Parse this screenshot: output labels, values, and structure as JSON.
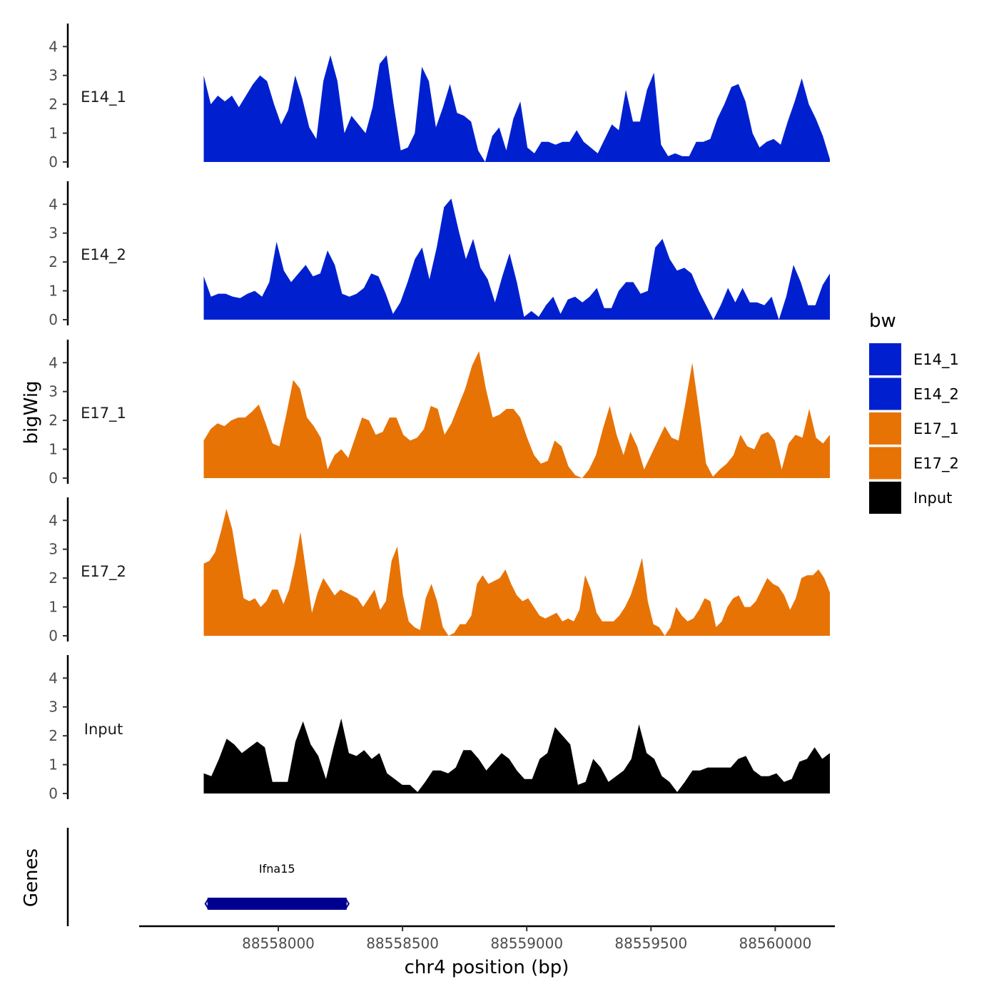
{
  "chart_data": {
    "type": "area",
    "chromosome": "chr4",
    "xlabel": "chr4 position (bp)",
    "ylabel": "bigWig",
    "genes_panel_label": "Genes",
    "xlim": [
      88557440,
      88560240
    ],
    "region": [
      88557700,
      88560220
    ],
    "xticks": [
      88558000,
      88558500,
      88559000,
      88559500,
      88560000
    ],
    "xtick_labels": [
      "88558000",
      "88558500",
      "88559000",
      "88559500",
      "88560000"
    ],
    "ylim": [
      0,
      4.6
    ],
    "yticks": [
      0,
      1,
      2,
      3,
      4
    ],
    "ytick_labels": [
      "0",
      "1",
      "2",
      "3",
      "4"
    ],
    "legend": {
      "title": "bw",
      "position": "right",
      "entries": [
        {
          "label": "E14_1",
          "color": "#0020D0"
        },
        {
          "label": "E14_2",
          "color": "#0020D0"
        },
        {
          "label": "E17_1",
          "color": "#E87305"
        },
        {
          "label": "E17_2",
          "color": "#E87305"
        },
        {
          "label": "Input",
          "color": "#000000"
        }
      ]
    },
    "series": [
      {
        "name": "E14_1",
        "color": "#0020D0",
        "values": [
          3.0,
          2.0,
          2.3,
          2.1,
          2.3,
          1.9,
          2.3,
          2.7,
          3.0,
          2.8,
          2.0,
          1.3,
          1.8,
          3.0,
          2.2,
          1.2,
          0.8,
          2.8,
          3.7,
          2.8,
          1.0,
          1.6,
          1.3,
          1.0,
          1.9,
          3.4,
          3.7,
          2.0,
          0.4,
          0.5,
          1.0,
          3.3,
          2.8,
          1.2,
          1.9,
          2.7,
          1.7,
          1.6,
          1.4,
          0.4,
          0.0,
          0.9,
          1.2,
          0.4,
          1.5,
          2.1,
          0.5,
          0.3,
          0.7,
          0.7,
          0.6,
          0.7,
          0.7,
          1.1,
          0.7,
          0.5,
          0.3,
          0.8,
          1.3,
          1.1,
          2.5,
          1.4,
          1.4,
          2.5,
          3.1,
          0.6,
          0.2,
          0.3,
          0.2,
          0.2,
          0.7,
          0.7,
          0.8,
          1.5,
          2.0,
          2.6,
          2.7,
          2.1,
          1.0,
          0.5,
          0.7,
          0.8,
          0.6,
          1.4,
          2.1,
          2.9,
          2.0,
          1.5,
          0.9,
          0.1
        ]
      },
      {
        "name": "E14_2",
        "color": "#0020D0",
        "values": [
          1.5,
          0.8,
          0.9,
          0.9,
          0.8,
          0.75,
          0.9,
          1.0,
          0.8,
          1.3,
          2.7,
          1.7,
          1.3,
          1.6,
          1.9,
          1.5,
          1.6,
          2.4,
          1.9,
          0.9,
          0.8,
          0.9,
          1.1,
          1.6,
          1.5,
          0.9,
          0.2,
          0.6,
          1.3,
          2.1,
          2.5,
          1.4,
          2.5,
          3.9,
          4.2,
          3.1,
          2.1,
          2.8,
          1.8,
          1.4,
          0.6,
          1.5,
          2.3,
          1.3,
          0.1,
          0.3,
          0.1,
          0.5,
          0.8,
          0.2,
          0.7,
          0.8,
          0.6,
          0.8,
          1.1,
          0.4,
          0.4,
          1.0,
          1.3,
          1.3,
          0.9,
          1.0,
          2.5,
          2.8,
          2.1,
          1.7,
          1.8,
          1.6,
          1.0,
          0.5,
          0.0,
          0.5,
          1.1,
          0.6,
          1.1,
          0.6,
          0.6,
          0.5,
          0.8,
          0.0,
          0.8,
          1.9,
          1.3,
          0.5,
          0.5,
          1.2,
          1.6
        ]
      },
      {
        "name": "E17_1",
        "color": "#E87305",
        "values": [
          1.3,
          1.7,
          1.9,
          1.8,
          2.0,
          2.1,
          2.1,
          2.3,
          2.55,
          1.9,
          1.2,
          1.1,
          2.2,
          3.4,
          3.1,
          2.1,
          1.8,
          1.4,
          0.3,
          0.8,
          1.0,
          0.7,
          1.4,
          2.1,
          2.0,
          1.5,
          1.6,
          2.1,
          2.1,
          1.5,
          1.3,
          1.4,
          1.7,
          2.5,
          2.4,
          1.5,
          1.9,
          2.5,
          3.1,
          3.9,
          4.4,
          3.1,
          2.1,
          2.2,
          2.4,
          2.4,
          2.1,
          1.4,
          0.8,
          0.5,
          0.6,
          1.3,
          1.1,
          0.4,
          0.1,
          0.0,
          0.3,
          0.8,
          1.7,
          2.5,
          1.5,
          0.8,
          1.6,
          1.1,
          0.3,
          0.8,
          1.3,
          1.8,
          1.4,
          1.3,
          2.6,
          4.0,
          2.3,
          0.5,
          0.05,
          0.3,
          0.5,
          0.8,
          1.5,
          1.1,
          1.0,
          1.5,
          1.6,
          1.3,
          0.3,
          1.2,
          1.5,
          1.4,
          2.4,
          1.4,
          1.2,
          1.5
        ]
      },
      {
        "name": "E17_2",
        "color": "#E87305",
        "values": [
          2.5,
          2.6,
          2.9,
          3.6,
          4.4,
          3.7,
          2.5,
          1.3,
          1.2,
          1.3,
          1.0,
          1.2,
          1.6,
          1.6,
          1.1,
          1.6,
          2.5,
          3.6,
          2.2,
          0.8,
          1.5,
          2.0,
          1.7,
          1.4,
          1.6,
          1.5,
          1.4,
          1.3,
          1.0,
          1.3,
          1.6,
          0.9,
          1.2,
          2.6,
          3.1,
          1.4,
          0.5,
          0.3,
          0.2,
          1.3,
          1.8,
          1.2,
          0.3,
          0.0,
          0.1,
          0.4,
          0.4,
          0.7,
          1.8,
          2.1,
          1.8,
          1.9,
          2.0,
          2.3,
          1.8,
          1.4,
          1.2,
          1.3,
          1.0,
          0.7,
          0.6,
          0.7,
          0.8,
          0.5,
          0.6,
          0.5,
          0.9,
          2.1,
          1.6,
          0.8,
          0.5,
          0.5,
          0.5,
          0.7,
          1.0,
          1.4,
          2.0,
          2.7,
          1.2,
          0.4,
          0.3,
          0.0,
          0.3,
          1.0,
          0.7,
          0.5,
          0.6,
          0.9,
          1.3,
          1.2,
          0.3,
          0.5,
          1.0,
          1.3,
          1.4,
          1.0,
          1.0,
          1.2,
          1.6,
          2.0,
          1.8,
          1.7,
          1.4,
          0.9,
          1.3,
          2.0,
          2.1,
          2.1,
          2.3,
          2.0,
          1.5
        ]
      },
      {
        "name": "Input",
        "color": "#000000",
        "values": [
          0.7,
          0.6,
          1.2,
          1.9,
          1.7,
          1.4,
          1.6,
          1.8,
          1.6,
          0.4,
          0.4,
          0.4,
          1.8,
          2.5,
          1.7,
          1.3,
          0.5,
          1.6,
          2.6,
          1.4,
          1.3,
          1.5,
          1.2,
          1.4,
          0.7,
          0.5,
          0.3,
          0.3,
          0.05,
          0.4,
          0.8,
          0.8,
          0.7,
          0.9,
          1.5,
          1.5,
          1.2,
          0.8,
          1.1,
          1.4,
          1.2,
          0.8,
          0.5,
          0.5,
          1.2,
          1.4,
          2.3,
          2.0,
          1.7,
          0.3,
          0.4,
          1.2,
          0.9,
          0.4,
          0.6,
          0.8,
          1.2,
          2.4,
          1.4,
          1.2,
          0.6,
          0.4,
          0.05,
          0.4,
          0.8,
          0.8,
          0.9,
          0.9,
          0.9,
          0.9,
          1.2,
          1.3,
          0.8,
          0.6,
          0.6,
          0.7,
          0.4,
          0.5,
          1.1,
          1.2,
          1.6,
          1.2,
          1.4
        ]
      }
    ],
    "genes": [
      {
        "name": "Ifna15",
        "start": 88557715,
        "end": 88558275,
        "color": "#000090",
        "strand": "-"
      }
    ]
  }
}
